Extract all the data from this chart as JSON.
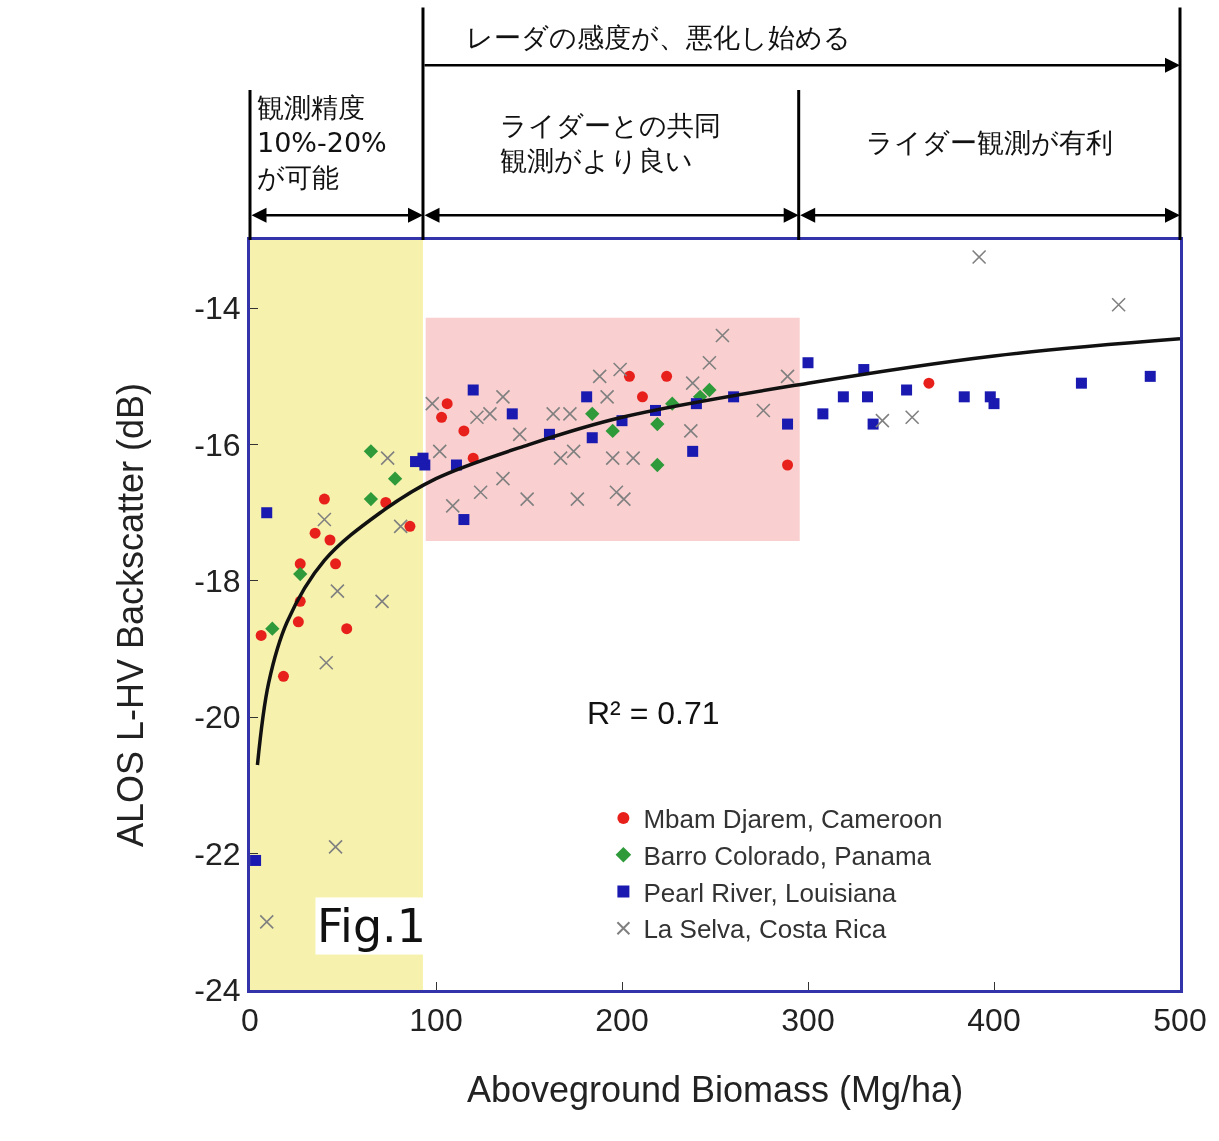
{
  "chart_data": {
    "type": "scatter",
    "xlabel": "Aboveground Biomass (Mg/ha)",
    "ylabel": "ALOS L-HV Backscatter (dB)",
    "xlim": [
      0,
      500
    ],
    "xticks": [
      0,
      100,
      200,
      300,
      400,
      500
    ],
    "ylim": [
      -24,
      -13
    ],
    "yticks": [
      -24,
      -22,
      -20,
      -18,
      -16,
      -14
    ],
    "grid": false,
    "legend": "bottom right",
    "series": [
      {
        "name": "Mbam Djarem, Cameroon",
        "color": "#e8201c",
        "marker": "circle",
        "x": [
          40,
          35,
          43,
          27,
          46,
          27,
          26,
          6,
          52,
          18,
          73,
          86,
          106,
          103,
          115,
          120,
          204,
          211,
          224,
          289,
          365
        ],
        "values": [
          -16.8,
          -17.3,
          -17.4,
          -17.75,
          -17.75,
          -18.3,
          -18.6,
          -18.8,
          -18.7,
          -19.4,
          -16.85,
          -17.2,
          -15.4,
          -15.6,
          -15.8,
          -16.2,
          -15.0,
          -15.3,
          -15.0,
          -16.3,
          -15.1
        ]
      },
      {
        "name": "Barro Colorado, Panama",
        "color": "#2e9a3a",
        "marker": "diamond",
        "x": [
          65,
          78,
          65,
          27,
          12,
          184,
          195,
          219,
          227,
          242,
          247,
          219
        ],
        "values": [
          -16.1,
          -16.5,
          -16.8,
          -17.9,
          -18.7,
          -15.55,
          -15.8,
          -15.7,
          -15.4,
          -15.3,
          -15.2,
          -16.3
        ]
      },
      {
        "name": "Pearl River, Louisiana",
        "color": "#1a1ab0",
        "marker": "square",
        "x": [
          9,
          3,
          89,
          94,
          120,
          141,
          161,
          181,
          184,
          200,
          218,
          240,
          238,
          260,
          289,
          111,
          115,
          93,
          300,
          308,
          319,
          330,
          332,
          335,
          353,
          384,
          398,
          400,
          447,
          484
        ],
        "values": [
          -17.0,
          -22.1,
          -16.25,
          -16.3,
          -15.2,
          -15.55,
          -15.85,
          -15.3,
          -15.9,
          -15.65,
          -15.5,
          -15.4,
          -16.1,
          -15.3,
          -15.7,
          -16.3,
          -17.1,
          -16.2,
          -14.8,
          -15.55,
          -15.3,
          -14.9,
          -15.3,
          -15.7,
          -15.2,
          -15.3,
          -15.3,
          -15.4,
          -15.1,
          -15.0
        ]
      },
      {
        "name": "La Selva, Costa Rica",
        "color": "#808080",
        "marker": "cross",
        "x": [
          40,
          74,
          47,
          71,
          41,
          46,
          9,
          81,
          98,
          136,
          129,
          172,
          188,
          199,
          192,
          174,
          195,
          206,
          176,
          149,
          197,
          201,
          254,
          247,
          289,
          276,
          237,
          238,
          167,
          136,
          124,
          109,
          102,
          145,
          163,
          122,
          392,
          467,
          340,
          356
        ],
        "values": [
          -17.1,
          -16.2,
          -18.15,
          -18.3,
          -19.2,
          -21.9,
          -23.0,
          -17.2,
          -15.4,
          -15.3,
          -15.55,
          -15.55,
          -15.0,
          -14.9,
          -15.3,
          -16.1,
          -16.2,
          -16.2,
          -16.8,
          -16.8,
          -16.7,
          -16.8,
          -14.4,
          -14.8,
          -15.0,
          -15.5,
          -15.8,
          -15.1,
          -16.2,
          -16.5,
          -16.7,
          -16.9,
          -16.1,
          -15.85,
          -15.55,
          -15.6,
          -13.25,
          -13.95,
          -15.65,
          -15.6
        ]
      },
      {
        "type": "line",
        "color": "#111111",
        "marker": "none",
        "x": [
          4,
          10,
          20,
          40,
          70,
          100,
          150,
          200,
          300,
          400,
          500
        ],
        "values": [
          -20.7,
          -19.5,
          -18.6,
          -17.7,
          -17.0,
          -16.5,
          -16.0,
          -15.6,
          -15.1,
          -14.7,
          -14.45
        ]
      }
    ],
    "bands": [
      {
        "axis": "x",
        "from": 0,
        "to": 93,
        "color": "#f2ec8c"
      },
      {
        "axis": "x",
        "from": 95,
        "to": 295,
        "color": "#f07878"
      }
    ],
    "annotations": [
      "観測精度10%-20%が可能",
      "レーダの感度が、悪化し始める",
      "ライダーとの共同観測がより良い",
      "ライダー観測が有利",
      "R² = 0.71",
      "Fig.1"
    ]
  }
}
